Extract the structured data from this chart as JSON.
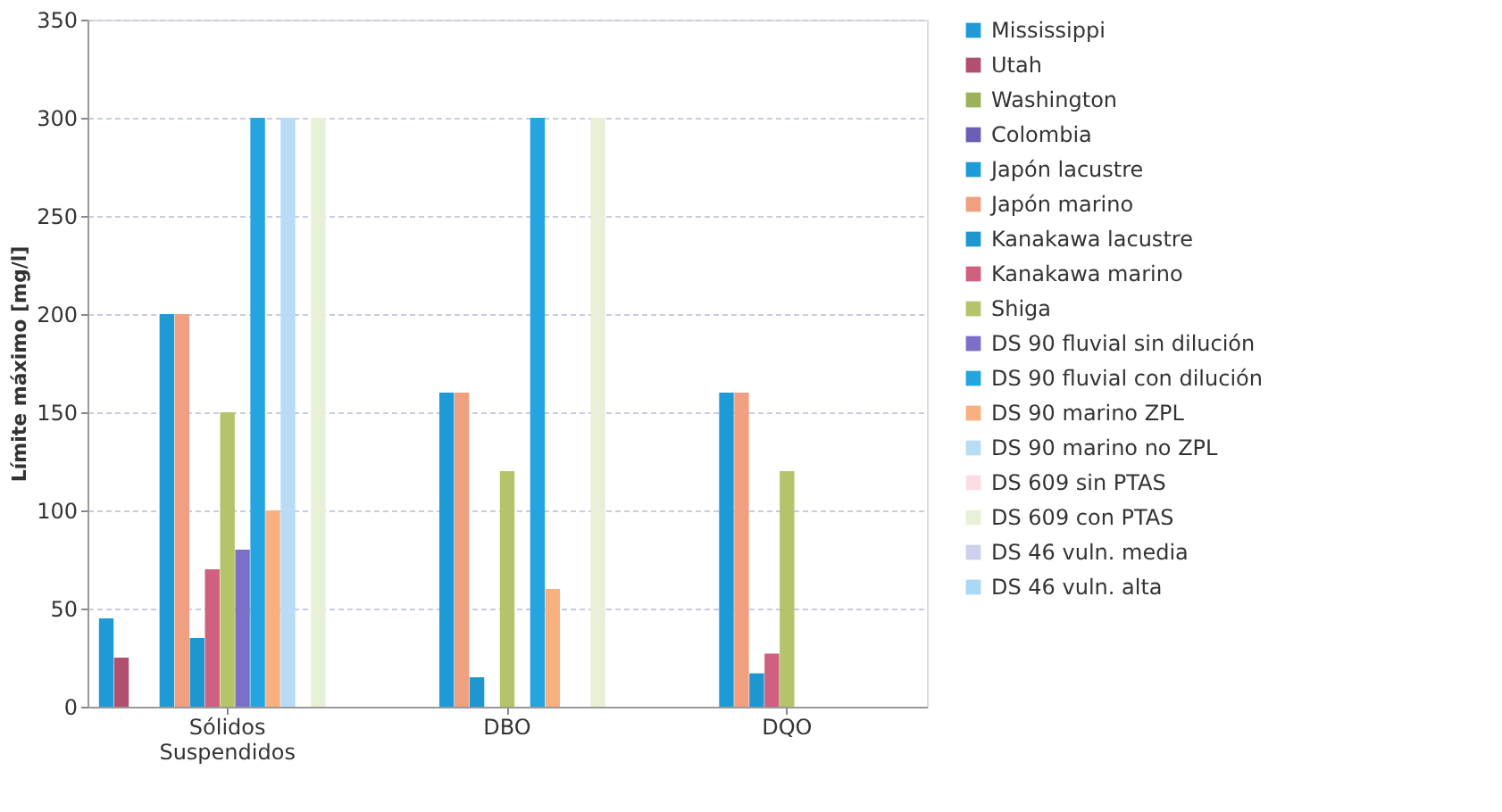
{
  "chart_data": {
    "type": "bar",
    "ylabel": "Límite máximo [mg/l]",
    "categories": [
      "Sólidos Suspendidos",
      "DBO",
      "DQO"
    ],
    "ylim": [
      0,
      350
    ],
    "yticks": [
      0,
      50,
      100,
      150,
      200,
      250,
      300,
      350
    ],
    "grid": "y",
    "legend": "right",
    "series": [
      {
        "name": "Mississippi",
        "color": "#1f9ad6",
        "values": [
          45,
          null,
          null
        ]
      },
      {
        "name": "Utah",
        "color": "#b0506e",
        "values": [
          25,
          null,
          null
        ]
      },
      {
        "name": "Washington",
        "color": "#9bb25a",
        "values": [
          null,
          null,
          null
        ]
      },
      {
        "name": "Colombia",
        "color": "#6a5fb5",
        "values": [
          null,
          null,
          null
        ]
      },
      {
        "name": "Japón lacustre",
        "color": "#1e9bd7",
        "values": [
          200,
          160,
          160
        ]
      },
      {
        "name": "Japón marino",
        "color": "#f0a080",
        "values": [
          200,
          160,
          160
        ]
      },
      {
        "name": "Kanakawa lacustre",
        "color": "#1e96d0",
        "values": [
          35,
          15,
          17
        ]
      },
      {
        "name": "Kanakawa marino",
        "color": "#d06080",
        "values": [
          70,
          null,
          27
        ]
      },
      {
        "name": "Shiga",
        "color": "#b5c46a",
        "values": [
          150,
          120,
          120
        ]
      },
      {
        "name": "DS 90 fluvial sin dilución",
        "color": "#7b6fc8",
        "values": [
          80,
          null,
          null
        ]
      },
      {
        "name": "DS 90 fluvial con dilución",
        "color": "#25a5e0",
        "values": [
          300,
          300,
          null
        ]
      },
      {
        "name": "DS 90 marino ZPL",
        "color": "#f8b080",
        "values": [
          100,
          60,
          null
        ]
      },
      {
        "name": "DS 90 marino no ZPL",
        "color": "#b8dcf5",
        "values": [
          300,
          null,
          null
        ]
      },
      {
        "name": "DS 609 sin PTAS",
        "color": "#fbdde3",
        "values": [
          null,
          null,
          null
        ]
      },
      {
        "name": "DS 609 con PTAS",
        "color": "#e8f0d8",
        "values": [
          300,
          300,
          null
        ]
      },
      {
        "name": "DS 46 vuln. media",
        "color": "#d0d0ec",
        "values": [
          null,
          null,
          null
        ]
      },
      {
        "name": "DS 46 vuln. alta",
        "color": "#a8d8f5",
        "values": [
          null,
          null,
          null
        ]
      }
    ]
  }
}
